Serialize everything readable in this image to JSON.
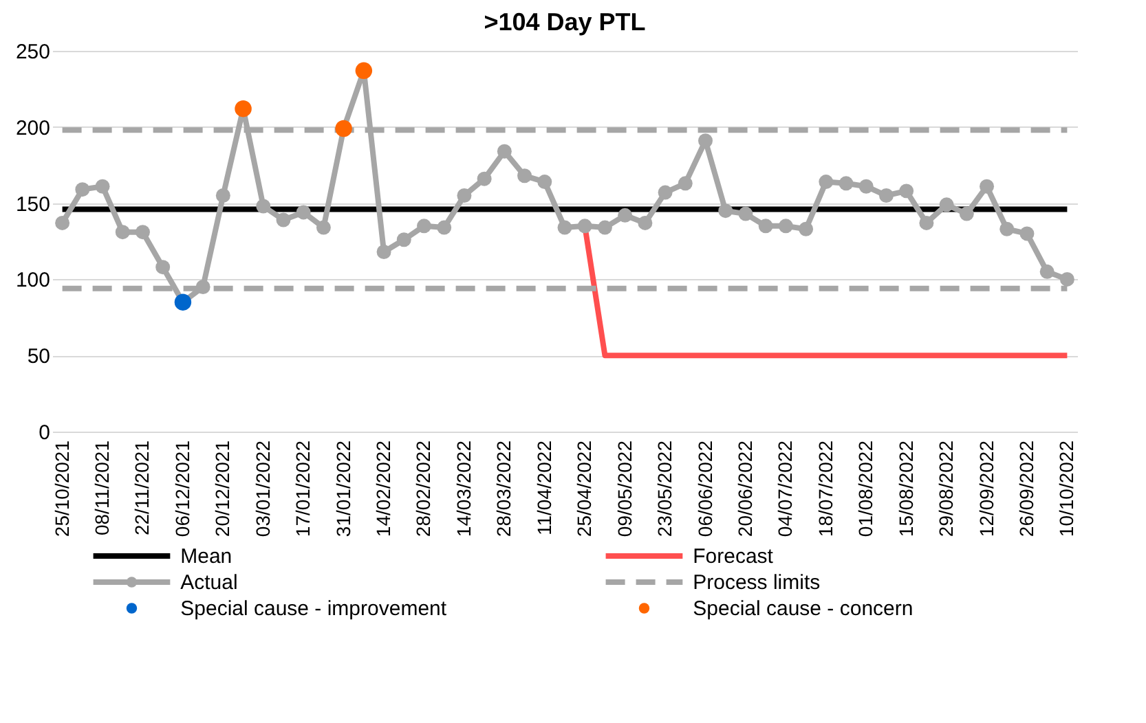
{
  "chart_data": {
    "type": "line",
    "title": ">104 Day PTL",
    "categories": [
      "25/10/2021",
      null,
      "08/11/2021",
      null,
      "22/11/2021",
      null,
      "06/12/2021",
      null,
      "20/12/2021",
      null,
      "03/01/2022",
      null,
      "17/01/2022",
      null,
      "31/01/2022",
      null,
      "14/02/2022",
      null,
      "28/02/2022",
      null,
      "14/03/2022",
      null,
      "28/03/2022",
      null,
      "11/04/2022",
      null,
      "25/04/2022",
      null,
      "09/05/2022",
      null,
      "23/05/2022",
      null,
      "06/06/2022",
      null,
      "20/06/2022",
      null,
      "04/07/2022",
      null,
      "18/07/2022",
      null,
      "01/08/2022",
      null,
      "15/08/2022",
      null,
      "29/08/2022",
      null,
      "12/09/2022",
      null,
      "26/09/2022",
      null,
      "10/10/2022"
    ],
    "series": [
      {
        "name": "Mean",
        "color": "#000000",
        "line_style": "solid",
        "values": [
          146,
          146,
          146,
          146,
          146,
          146,
          146,
          146,
          146,
          146,
          146,
          146,
          146,
          146,
          146,
          146,
          146,
          146,
          146,
          146,
          146,
          146,
          146,
          146,
          146,
          146,
          146,
          146,
          146,
          146,
          146,
          146,
          146,
          146,
          146,
          146,
          146,
          146,
          146,
          146,
          146,
          146,
          146,
          146,
          146,
          146,
          146,
          146,
          146,
          146,
          146
        ]
      },
      {
        "name": "Forecast",
        "color": "#ff4f4f",
        "line_style": "solid",
        "values": [
          null,
          null,
          null,
          null,
          null,
          null,
          null,
          null,
          null,
          null,
          null,
          null,
          null,
          null,
          null,
          null,
          null,
          null,
          null,
          null,
          null,
          null,
          null,
          null,
          null,
          null,
          135,
          50,
          50,
          50,
          50,
          50,
          50,
          50,
          50,
          50,
          50,
          50,
          50,
          50,
          50,
          50,
          50,
          50,
          50,
          50,
          50,
          50,
          50,
          50,
          50
        ]
      },
      {
        "name": "Actual",
        "color": "#a6a6a6",
        "line_style": "solid",
        "marker": "circle",
        "values": [
          137,
          159,
          161,
          131,
          131,
          108,
          85,
          95,
          155,
          212,
          148,
          139,
          144,
          134,
          199,
          237,
          118,
          126,
          135,
          134,
          155,
          166,
          184,
          168,
          164,
          134,
          135,
          134,
          142,
          137,
          157,
          163,
          191,
          145,
          143,
          135,
          135,
          133,
          164,
          163,
          161,
          155,
          158,
          137,
          149,
          143,
          161,
          133,
          130,
          105,
          100
        ]
      },
      {
        "name": "Process limits",
        "color": "#a6a6a6",
        "line_style": "dashed",
        "values": [
          198,
          198,
          198,
          198,
          198,
          198,
          198,
          198,
          198,
          198,
          198,
          198,
          198,
          198,
          198,
          198,
          198,
          198,
          198,
          198,
          198,
          198,
          198,
          198,
          198,
          198,
          198,
          198,
          198,
          198,
          198,
          198,
          198,
          198,
          198,
          198,
          198,
          198,
          198,
          198,
          198,
          198,
          198,
          198,
          198,
          198,
          198,
          198,
          198,
          198,
          198
        ]
      },
      {
        "name": "Special cause - improvement",
        "type": "scatter",
        "color": "#0066cc",
        "marker": "circle",
        "values": [
          null,
          null,
          null,
          null,
          null,
          null,
          85,
          null,
          null,
          null,
          null,
          null,
          null,
          null,
          null,
          null,
          null,
          null,
          null,
          null,
          null,
          null,
          null,
          null,
          null,
          null,
          null,
          null,
          null,
          null,
          null,
          null,
          null,
          null,
          null,
          null,
          null,
          null,
          null,
          null,
          null,
          null,
          null,
          null,
          null,
          null,
          null,
          null,
          null,
          null,
          null
        ]
      },
      {
        "name": "Special cause - concern",
        "type": "scatter",
        "color": "#ff6600",
        "marker": "circle",
        "values": [
          null,
          null,
          null,
          null,
          null,
          null,
          null,
          null,
          null,
          212,
          null,
          null,
          null,
          null,
          199,
          237,
          null,
          null,
          null,
          null,
          null,
          null,
          null,
          null,
          null,
          null,
          null,
          null,
          null,
          null,
          null,
          null,
          null,
          null,
          null,
          null,
          null,
          null,
          null,
          null,
          null,
          null,
          null,
          null,
          null,
          null,
          null,
          null,
          null,
          null,
          null
        ]
      },
      {
        "color": "#a6a6a6",
        "line_style": "dashed",
        "values": [
          94,
          94,
          94,
          94,
          94,
          94,
          94,
          94,
          94,
          94,
          94,
          94,
          94,
          94,
          94,
          94,
          94,
          94,
          94,
          94,
          94,
          94,
          94,
          94,
          94,
          94,
          94,
          94,
          94,
          94,
          94,
          94,
          94,
          94,
          94,
          94,
          94,
          94,
          94,
          94,
          94,
          94,
          94,
          94,
          94,
          94,
          94,
          94,
          94,
          94,
          94
        ]
      }
    ],
    "ylim": [
      0,
      250
    ],
    "yticks": [
      0,
      50,
      100,
      150,
      200,
      250
    ],
    "grid": "y",
    "legend": "bottom"
  }
}
